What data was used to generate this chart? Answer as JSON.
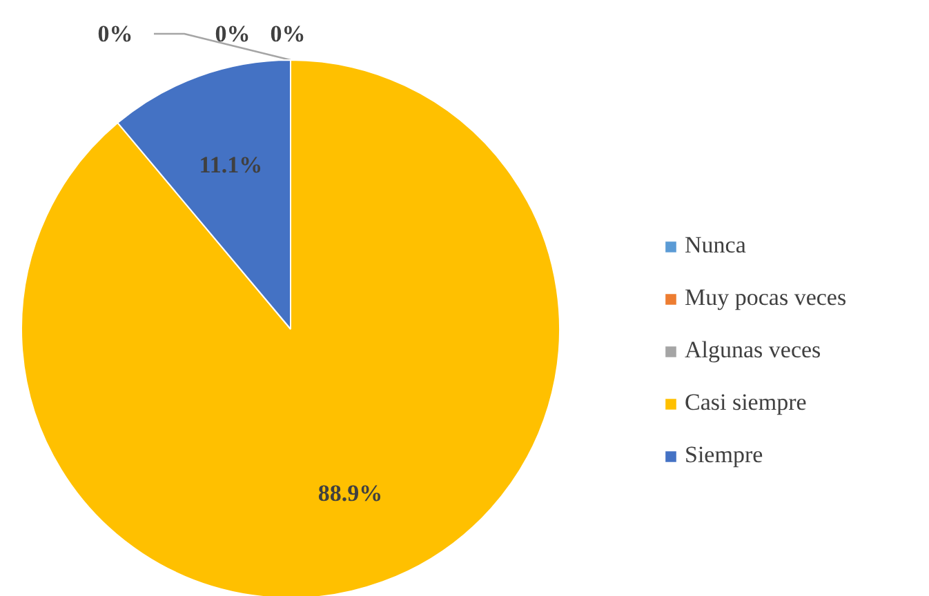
{
  "chart_data": {
    "type": "pie",
    "categories": [
      "Nunca",
      "Muy pocas veces",
      "Algunas veces",
      "Casi siempre",
      "Siempre"
    ],
    "values": [
      0,
      0,
      0,
      88.9,
      11.1
    ],
    "colors": [
      "#5b9bd5",
      "#ed7d31",
      "#a5a5a5",
      "#ffc000",
      "#4472c4"
    ],
    "value_labels": [
      "0%",
      "0%",
      "0%",
      "88.9%",
      "11.1%"
    ],
    "legend": "right"
  }
}
